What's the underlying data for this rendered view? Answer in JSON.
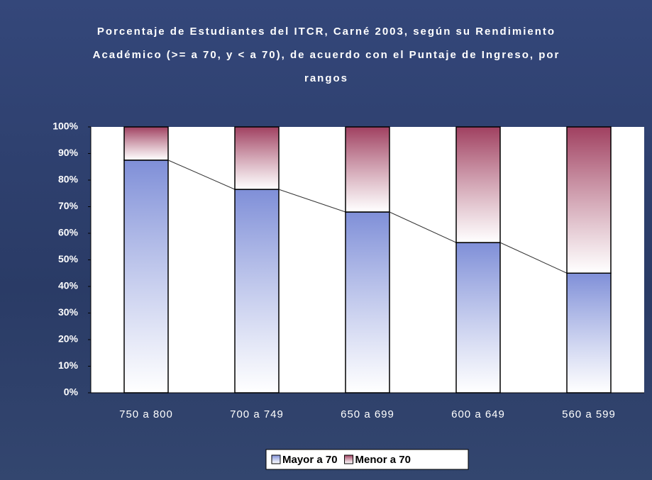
{
  "chart_data": {
    "type": "stacked_bar",
    "title": "Porcentaje de Estudiantes del ITCR, Carné 2003, según su Rendimiento Académico (>= a 70, y < a 70), de acuerdo con el Puntaje de Ingreso, por rangos",
    "categories": [
      "750 a 800",
      "700 a 749",
      "650 a 699",
      "600 a 649",
      "560 a 599"
    ],
    "series": [
      {
        "name": "Mayor a 70",
        "color": "#7f8fd8",
        "values": [
          87.5,
          76.5,
          68,
          56.5,
          45
        ]
      },
      {
        "name": "Menor a 70",
        "color": "#a04060",
        "values": [
          12.5,
          23.5,
          32,
          43.5,
          55
        ]
      }
    ],
    "ylim": [
      0,
      100
    ],
    "yticks": [
      {
        "value": 0,
        "label": "0%"
      },
      {
        "value": 10,
        "label": "10%"
      },
      {
        "value": 20,
        "label": "20%"
      },
      {
        "value": 30,
        "label": "30%"
      },
      {
        "value": 40,
        "label": "40%"
      },
      {
        "value": 50,
        "label": "50%"
      },
      {
        "value": 60,
        "label": "60%"
      },
      {
        "value": 70,
        "label": "70%"
      },
      {
        "value": 80,
        "label": "80%"
      },
      {
        "value": 90,
        "label": "90%"
      },
      {
        "value": 100,
        "label": "100%"
      }
    ],
    "grid": false,
    "legend": "bottom"
  }
}
